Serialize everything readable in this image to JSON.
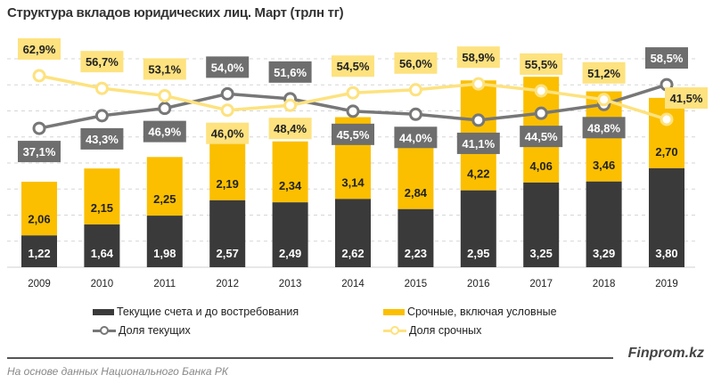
{
  "chart_data": {
    "type": "bar",
    "title": "Структура вкладов юридических лиц. Март (трлн тг)",
    "categories": [
      "2009",
      "2010",
      "2011",
      "2012",
      "2013",
      "2014",
      "2015",
      "2016",
      "2017",
      "2018",
      "2019"
    ],
    "series": [
      {
        "name": "Текущие счета и до востребования",
        "kind": "stacked-bar",
        "color": "#3a3a3a",
        "values": [
          1.22,
          1.64,
          1.98,
          2.57,
          2.49,
          2.62,
          2.23,
          2.95,
          3.25,
          3.29,
          3.8
        ],
        "labels": [
          "1,22",
          "1,64",
          "1,98",
          "2,57",
          "2,49",
          "2,62",
          "2,23",
          "2,95",
          "3,25",
          "3,29",
          "3,80"
        ]
      },
      {
        "name": "Срочные, включая условные",
        "kind": "stacked-bar",
        "color": "#fbbf00",
        "values": [
          2.06,
          2.15,
          2.25,
          2.19,
          2.34,
          3.14,
          2.84,
          4.22,
          4.06,
          3.46,
          2.7
        ],
        "labels": [
          "2,06",
          "2,15",
          "2,25",
          "2,19",
          "2,34",
          "3,14",
          "2,84",
          "4,22",
          "4,06",
          "3,46",
          "2,70"
        ]
      },
      {
        "name": "Доля текущих",
        "kind": "line",
        "unit": "%",
        "color": "#777777",
        "values": [
          37.1,
          43.3,
          46.9,
          54.0,
          51.6,
          45.5,
          44.0,
          41.1,
          44.5,
          48.8,
          58.5
        ],
        "labels": [
          "37,1%",
          "43,3%",
          "46,9%",
          "54,0%",
          "51,6%",
          "45,5%",
          "44,0%",
          "41,1%",
          "44,5%",
          "48,8%",
          "58,5%"
        ]
      },
      {
        "name": "Доля срочных",
        "kind": "line",
        "unit": "%",
        "color": "#fde27f",
        "values": [
          62.9,
          56.7,
          53.1,
          46.0,
          48.4,
          54.5,
          56.0,
          58.9,
          55.5,
          51.2,
          41.5
        ],
        "labels": [
          "62,9%",
          "56,7%",
          "53,1%",
          "46,0%",
          "48,4%",
          "54,5%",
          "56,0%",
          "58,9%",
          "55,5%",
          "51,2%",
          "41,5%"
        ]
      }
    ],
    "ylim": [
      0,
      8
    ],
    "grid": true,
    "legend": "bottom"
  },
  "brand": "Finprom.kz",
  "source": "На основе данных Национального  Банка РК"
}
